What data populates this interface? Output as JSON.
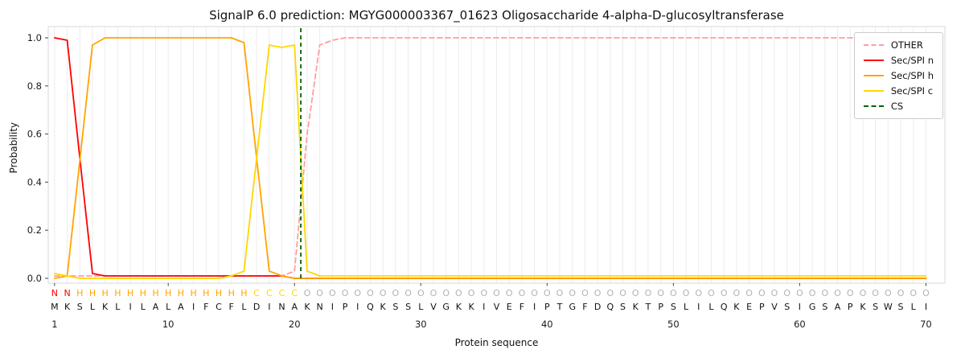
{
  "chart_data": {
    "type": "line",
    "title": "SignalP 6.0 prediction: MGYG000003367_01623 Oligosaccharide 4-alpha-D-glucosyltransferase",
    "xlabel": "Protein sequence",
    "ylabel": "Probability",
    "xlim": [
      0.5,
      71.5
    ],
    "ylim": [
      -0.02,
      1.02
    ],
    "xticks": [
      1,
      10,
      20,
      30,
      40,
      50,
      60,
      70
    ],
    "yticks": [
      0.0,
      0.2,
      0.4,
      0.6,
      0.8,
      1.0
    ],
    "grid": "vertical line per residue, light gray",
    "legend_position": "upper-right",
    "x": [
      1,
      2,
      3,
      4,
      5,
      6,
      7,
      8,
      9,
      10,
      11,
      12,
      13,
      14,
      15,
      16,
      17,
      18,
      19,
      20,
      21,
      22,
      23,
      24,
      25,
      26,
      27,
      28,
      29,
      30,
      31,
      32,
      33,
      34,
      35,
      36,
      37,
      38,
      39,
      40,
      41,
      42,
      43,
      44,
      45,
      46,
      47,
      48,
      49,
      50,
      51,
      52,
      53,
      54,
      55,
      56,
      57,
      58,
      59,
      60,
      61,
      62,
      63,
      64,
      65,
      66,
      67,
      68,
      69,
      70
    ],
    "series": [
      {
        "name": "OTHER",
        "color": "#ff9e9e",
        "dash": true,
        "values": [
          0.01,
          0.01,
          0.01,
          0.01,
          0.01,
          0.01,
          0.01,
          0.01,
          0.01,
          0.01,
          0.01,
          0.01,
          0.01,
          0.01,
          0.01,
          0.01,
          0.01,
          0.01,
          0.01,
          0.03,
          0.6,
          0.97,
          0.99,
          1.0,
          1.0,
          1.0,
          1.0,
          1.0,
          1.0,
          1.0,
          1.0,
          1.0,
          1.0,
          1.0,
          1.0,
          1.0,
          1.0,
          1.0,
          1.0,
          1.0,
          1.0,
          1.0,
          1.0,
          1.0,
          1.0,
          1.0,
          1.0,
          1.0,
          1.0,
          1.0,
          1.0,
          1.0,
          1.0,
          1.0,
          1.0,
          1.0,
          1.0,
          1.0,
          1.0,
          1.0,
          1.0,
          1.0,
          1.0,
          1.0,
          1.0,
          1.0,
          1.0,
          1.0,
          1.0,
          1.0
        ]
      },
      {
        "name": "Sec/SPI n",
        "color": "#ff0000",
        "dash": false,
        "values": [
          1.0,
          0.99,
          0.5,
          0.02,
          0.01,
          0.01,
          0.01,
          0.01,
          0.01,
          0.01,
          0.01,
          0.01,
          0.01,
          0.01,
          0.01,
          0.01,
          0.01,
          0.01,
          0.01,
          0.0,
          0.0,
          0.0,
          0.0,
          0.0,
          0.0,
          0.0,
          0.0,
          0.0,
          0.0,
          0.0,
          0.0,
          0.0,
          0.0,
          0.0,
          0.0,
          0.0,
          0.0,
          0.0,
          0.0,
          0.0,
          0.0,
          0.0,
          0.0,
          0.0,
          0.0,
          0.0,
          0.0,
          0.0,
          0.0,
          0.0,
          0.0,
          0.0,
          0.0,
          0.0,
          0.0,
          0.0,
          0.0,
          0.0,
          0.0,
          0.0,
          0.0,
          0.0,
          0.0,
          0.0,
          0.0,
          0.0,
          0.0,
          0.0,
          0.0,
          0.0
        ]
      },
      {
        "name": "Sec/SPI h",
        "color": "#ffa500",
        "dash": false,
        "values": [
          0.0,
          0.01,
          0.49,
          0.97,
          1.0,
          1.0,
          1.0,
          1.0,
          1.0,
          1.0,
          1.0,
          1.0,
          1.0,
          1.0,
          1.0,
          0.98,
          0.5,
          0.03,
          0.01,
          0.0,
          0.0,
          0.0,
          0.0,
          0.0,
          0.0,
          0.0,
          0.0,
          0.0,
          0.0,
          0.0,
          0.0,
          0.0,
          0.0,
          0.0,
          0.0,
          0.0,
          0.0,
          0.0,
          0.0,
          0.0,
          0.0,
          0.0,
          0.0,
          0.0,
          0.0,
          0.0,
          0.0,
          0.0,
          0.0,
          0.0,
          0.0,
          0.0,
          0.0,
          0.0,
          0.0,
          0.0,
          0.0,
          0.0,
          0.0,
          0.0,
          0.0,
          0.0,
          0.0,
          0.0,
          0.0,
          0.0,
          0.0,
          0.0,
          0.0,
          0.0
        ]
      },
      {
        "name": "Sec/SPI c",
        "color": "#ffd700",
        "dash": false,
        "values": [
          0.02,
          0.01,
          0.0,
          0.0,
          0.0,
          0.0,
          0.0,
          0.0,
          0.0,
          0.0,
          0.0,
          0.0,
          0.0,
          0.0,
          0.01,
          0.03,
          0.5,
          0.97,
          0.96,
          0.97,
          0.03,
          0.01,
          0.01,
          0.01,
          0.01,
          0.01,
          0.01,
          0.01,
          0.01,
          0.01,
          0.01,
          0.01,
          0.01,
          0.01,
          0.01,
          0.01,
          0.01,
          0.01,
          0.01,
          0.01,
          0.01,
          0.01,
          0.01,
          0.01,
          0.01,
          0.01,
          0.01,
          0.01,
          0.01,
          0.01,
          0.01,
          0.01,
          0.01,
          0.01,
          0.01,
          0.01,
          0.01,
          0.01,
          0.01,
          0.01,
          0.01,
          0.01,
          0.01,
          0.01,
          0.01,
          0.01,
          0.01,
          0.01,
          0.01,
          0.01
        ]
      }
    ],
    "cs_line": {
      "name": "CS",
      "x": 20.5,
      "color": "#006400",
      "dash": true
    },
    "sequence": "MKSLKLILALAIFCFLDINAKNIPIQKSSLVGKKIVEFIPTGFDQSKTPSLILQKEPVSIGSAPKSWSLI",
    "region_labels": "NNHHHHHHHHHHHHHHCCCCOOOOOOOOOOOOOOOOOOOOOOOOOOOOOOOOOOOOOOOOOOOOOOOOOO",
    "region_colors": {
      "N": "#ff0000",
      "H": "#ffa500",
      "C": "#ffd700",
      "O": "#b3b3b3"
    },
    "sequence_color": "#111111"
  }
}
